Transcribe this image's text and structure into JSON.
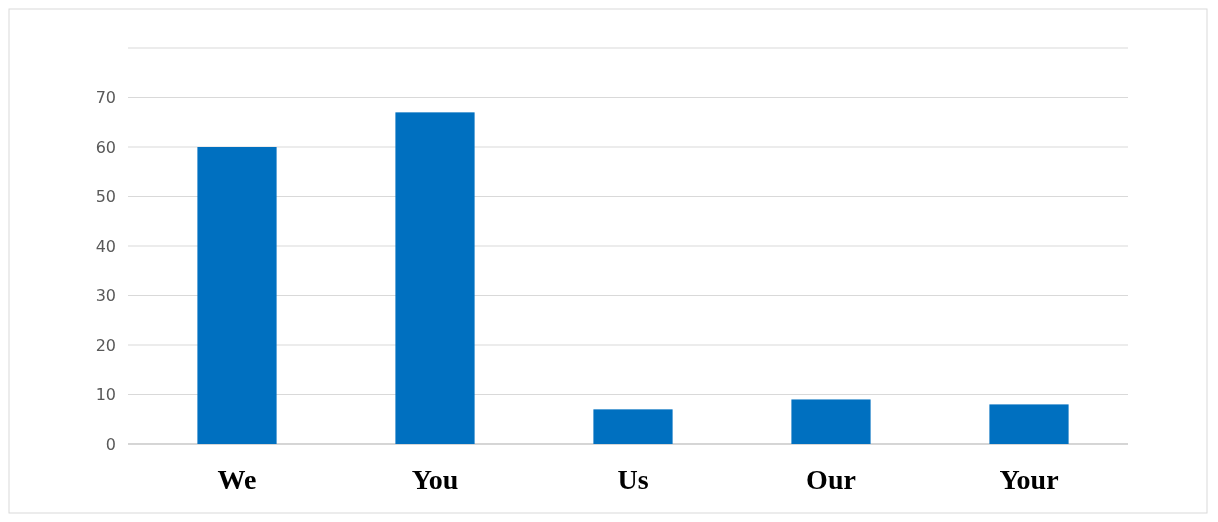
{
  "chart_data": {
    "type": "bar",
    "categories": [
      "We",
      "You",
      "Us",
      "Our",
      "Your"
    ],
    "values": [
      60,
      67,
      7,
      9,
      8
    ],
    "color": "#0070c0",
    "ylim": [
      0,
      80
    ],
    "yticks": [
      0,
      10,
      20,
      30,
      40,
      50,
      60,
      70,
      {
        "value": 80,
        "label": null
      }
    ],
    "grid": true
  }
}
